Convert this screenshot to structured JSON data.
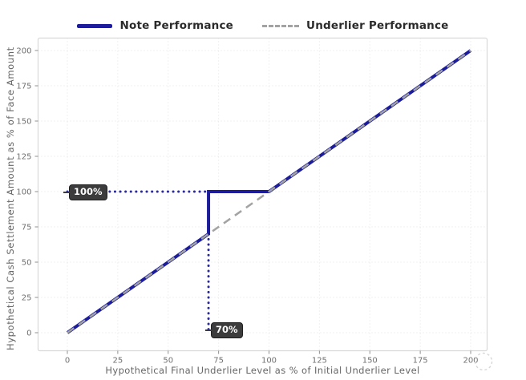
{
  "legend": {
    "items": [
      {
        "label": "Note Performance",
        "color": "#1d1d9c",
        "style": "solid"
      },
      {
        "label": "Underlier Performance",
        "color": "#a3a3a3",
        "style": "dashed"
      }
    ]
  },
  "chart_data": {
    "type": "line",
    "title": "",
    "xlabel": "Hypothetical Final Underlier Level as % of Initial Underlier Level",
    "ylabel": "Hypothetical Cash Settlement Amount as % of Face Amount",
    "x_ticks": [
      0,
      25,
      50,
      75,
      100,
      125,
      150,
      175,
      200
    ],
    "y_ticks": [
      0,
      25,
      50,
      75,
      100,
      125,
      150,
      175,
      200
    ],
    "xlim": [
      0,
      200
    ],
    "ylim": [
      0,
      200
    ],
    "grid": true,
    "legend_position": "top",
    "series": [
      {
        "name": "Note Performance",
        "style": "solid",
        "color": "#1d1d9c",
        "width": 4,
        "points": [
          [
            0,
            0
          ],
          [
            70,
            70
          ],
          [
            70,
            100
          ],
          [
            100,
            100
          ],
          [
            200,
            200
          ]
        ]
      },
      {
        "name": "Underlier Performance",
        "style": "dashed",
        "color": "#a3a3a3",
        "width": 2.5,
        "points": [
          [
            0,
            0
          ],
          [
            200,
            200
          ]
        ]
      }
    ],
    "annotations": {
      "labels": [
        {
          "text": "100%",
          "at": [
            0,
            100
          ]
        },
        {
          "text": "70%",
          "at": [
            70,
            0
          ]
        }
      ],
      "dotted_guides": [
        {
          "from": [
            0,
            100
          ],
          "to": [
            70,
            100
          ],
          "color": "#2a2aa0"
        },
        {
          "from": [
            70,
            70
          ],
          "to": [
            70,
            0
          ],
          "color": "#2a2aa0"
        }
      ]
    }
  },
  "theme": {
    "background": "#ffffff",
    "grid_color": "#e3e3e3",
    "border_color": "#d9d9d9",
    "tick_color": "#8f8f8f",
    "tick_label_color": "#707070",
    "axis_title_color": "#666666",
    "annotation_bg": "#3c3c3c",
    "annotation_text": "#ffffff",
    "corner_circle_color": "#d7d7d7"
  }
}
